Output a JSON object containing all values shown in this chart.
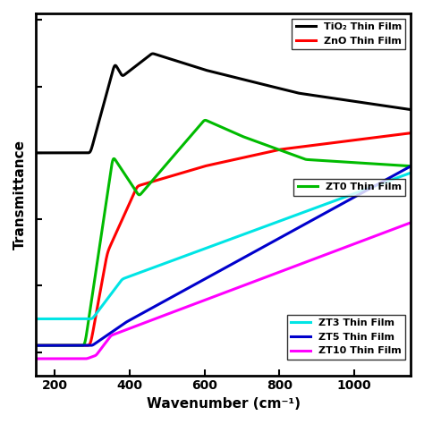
{
  "xlabel": "Wavenumber (cm⁻¹)",
  "ylabel": "Transmittance",
  "xlim": [
    150,
    1150
  ],
  "background_color": "#ffffff",
  "series": {
    "TiO2": {
      "color": "#000000",
      "label": "TiO₂ Thin Film"
    },
    "ZnO": {
      "color": "#ff0000",
      "label": "ZnO Thin Film"
    },
    "ZT0": {
      "color": "#00bb00",
      "label": "ZT0 Thin Film"
    },
    "ZT3": {
      "color": "#00e5e5",
      "label": "ZT3 Thin Film"
    },
    "ZT5": {
      "color": "#0000cc",
      "label": "ZT5 Thin Film"
    },
    "ZT10": {
      "color": "#ff00ff",
      "label": "ZT10 Thin Film"
    }
  },
  "ytick_positions": [
    0.0,
    0.2,
    0.4,
    0.6,
    0.8,
    1.0
  ],
  "xtick_positions": [
    200,
    400,
    600,
    800,
    1000
  ],
  "linewidth": 2.2
}
